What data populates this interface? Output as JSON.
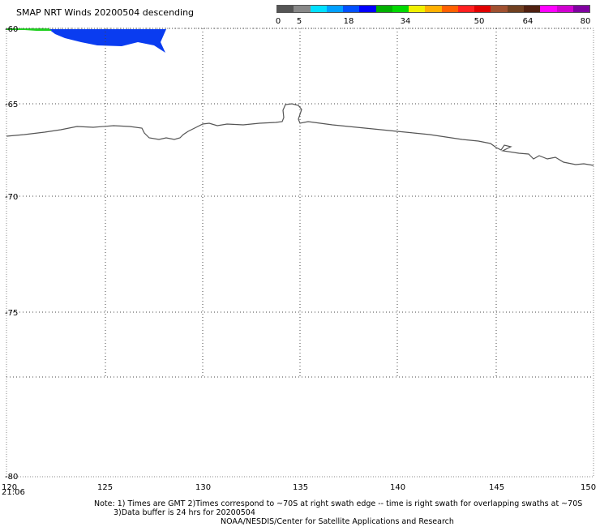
{
  "title": "SMAP NRT Winds  20200504 descending",
  "legend": {
    "labels": [
      "0",
      "5",
      "18",
      "34",
      "50",
      "64",
      "80"
    ],
    "colors": [
      "#555555",
      "#888888",
      "#00e0ff",
      "#00a0ff",
      "#0050ff",
      "#0000ff",
      "#00b000",
      "#00d800",
      "#f0f000",
      "#ffb000",
      "#ff6000",
      "#ff2020",
      "#e00000",
      "#a05030",
      "#704020",
      "#502010",
      "#ff00ff",
      "#d000d0",
      "#8000a0"
    ]
  },
  "map": {
    "lon_ticks": [
      "120",
      "125",
      "130",
      "135",
      "140",
      "145",
      "150"
    ],
    "lat_ticks": [
      "-60",
      "-65",
      "-70",
      "-75",
      "-80"
    ],
    "swath_time": "21:06"
  },
  "notes": {
    "line1": "Note: 1) Times are GMT 2)Times correspond to ~70S at right swath edge -- time is right swath for overlapping swaths at ~70S",
    "line2": "3)Data buffer is 24 hrs for 20200504",
    "line3": "NOAA/NESDIS/Center for Satellite Applications and Research"
  },
  "colors": {
    "coast": "#555555",
    "wind_blue": "#0a3cf0",
    "wind_green": "#20d020"
  }
}
